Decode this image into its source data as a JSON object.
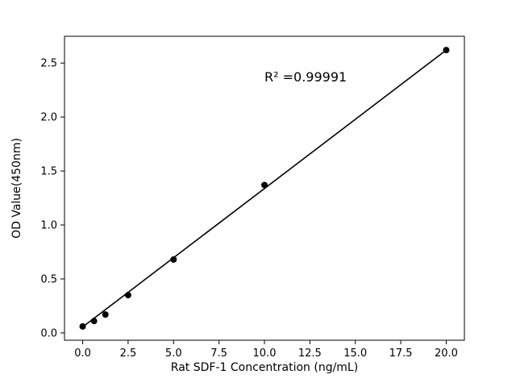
{
  "chart_data": {
    "type": "scatter",
    "title": "",
    "xlabel": "Rat SDF-1 Concentration (ng/mL)",
    "ylabel": "OD Value(450nm)",
    "x": [
      0,
      0.625,
      1.25,
      2.5,
      5,
      10,
      20
    ],
    "y": [
      0.06,
      0.11,
      0.17,
      0.35,
      0.68,
      1.37,
      2.62
    ],
    "fit_line": {
      "x": [
        0,
        20
      ],
      "y": [
        0.055,
        2.62
      ]
    },
    "annotation": {
      "text": "R² =0.99991",
      "x": 10,
      "y": 2.33
    },
    "xlim": [
      -1,
      21
    ],
    "ylim": [
      -0.068,
      2.748
    ],
    "xticks": [
      0.0,
      2.5,
      5.0,
      7.5,
      10.0,
      12.5,
      15.0,
      17.5,
      20.0
    ],
    "xtick_labels": [
      "0.0",
      "2.5",
      "5.0",
      "7.5",
      "10.0",
      "12.5",
      "15.0",
      "17.5",
      "20.0"
    ],
    "yticks": [
      0.0,
      0.5,
      1.0,
      1.5,
      2.0,
      2.5
    ],
    "ytick_labels": [
      "0.0",
      "0.5",
      "1.0",
      "1.5",
      "2.0",
      "2.5"
    ],
    "grid": false,
    "legend": null,
    "marker_color": "#000000",
    "line_color": "#000000",
    "frame_color": "#000000",
    "background": "#ffffff"
  }
}
